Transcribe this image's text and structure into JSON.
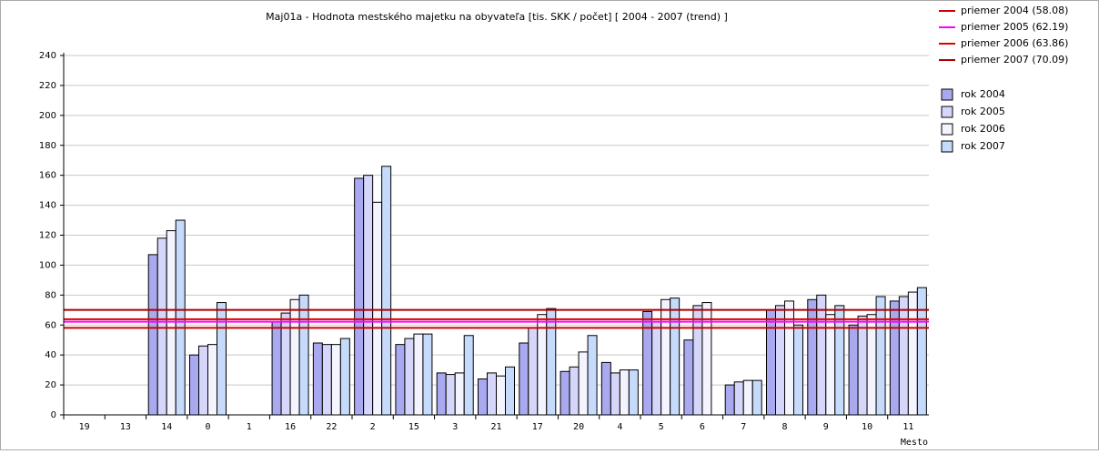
{
  "chart_data": {
    "type": "bar",
    "title": "Maj01a - Hodnota mestského majetku na obyvateľa [tis. SKK / počet]  [ 2004 - 2007 (trend) ]",
    "x_label": "Mesto",
    "categories": [
      "19",
      "13",
      "14",
      "0",
      "1",
      "16",
      "22",
      "2",
      "15",
      "3",
      "21",
      "17",
      "20",
      "4",
      "5",
      "6",
      "7",
      "8",
      "9",
      "10",
      "11"
    ],
    "series": [
      {
        "name": "rok 2004",
        "color": "#a9a9ef",
        "values": [
          null,
          null,
          107,
          40,
          null,
          62,
          48,
          158,
          47,
          28,
          24,
          48,
          29,
          35,
          69,
          50,
          20,
          70,
          77,
          60,
          76
        ]
      },
      {
        "name": "rok 2005",
        "color": "#d6d6fb",
        "values": [
          null,
          null,
          118,
          46,
          null,
          68,
          47,
          160,
          51,
          27,
          28,
          58,
          32,
          28,
          62,
          73,
          22,
          73,
          80,
          66,
          79
        ]
      },
      {
        "name": "rok 2006",
        "color": "#f4f4ff",
        "values": [
          null,
          null,
          123,
          47,
          null,
          77,
          47,
          142,
          54,
          28,
          26,
          67,
          42,
          30,
          77,
          75,
          23,
          76,
          67,
          67,
          82
        ]
      },
      {
        "name": "rok 2007",
        "color": "#c6dbfb",
        "values": [
          null,
          null,
          130,
          75,
          null,
          80,
          51,
          166,
          54,
          53,
          32,
          71,
          53,
          30,
          78,
          null,
          23,
          60,
          73,
          79,
          85
        ]
      }
    ],
    "reference_lines": [
      {
        "name": "priemer 2004 (58.08)",
        "value": 58.08,
        "color": "#cc0000"
      },
      {
        "name": "priemer 2005 (62.19)",
        "value": 62.19,
        "color": "#ff00ff"
      },
      {
        "name": "priemer 2006 (63.86)",
        "value": 63.86,
        "color": "#dd0000"
      },
      {
        "name": "priemer 2007 (70.09)",
        "value": 70.09,
        "color": "#aa0000"
      }
    ],
    "ylim": [
      0,
      240
    ],
    "yticks": [
      0,
      20,
      40,
      60,
      80,
      100,
      120,
      140,
      160,
      180,
      200,
      220,
      240
    ],
    "grid": true
  }
}
